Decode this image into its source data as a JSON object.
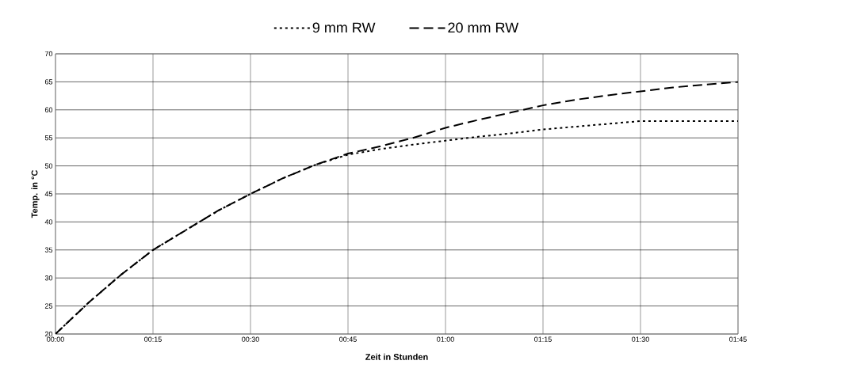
{
  "chart_data": {
    "type": "line",
    "xlabel": "Zeit in Stunden",
    "ylabel": "Temp. in °C",
    "x": [
      0,
      0.0833,
      0.1667,
      0.25,
      0.3333,
      0.4167,
      0.5,
      0.5833,
      0.6667,
      0.75,
      0.8333,
      0.9167,
      1,
      1.0833,
      1.1667,
      1.25,
      1.3333,
      1.4167,
      1.5,
      1.5833,
      1.6667,
      1.75
    ],
    "series": [
      {
        "name": "9 mm RW",
        "color": "#000000",
        "line_style": "dotted",
        "values": [
          20,
          25.5,
          30.5,
          35,
          38.5,
          42,
          45,
          47.8,
          50.2,
          52,
          53,
          53.8,
          54.5,
          55.2,
          55.8,
          56.5,
          57,
          57.5,
          58,
          58,
          58,
          58
        ]
      },
      {
        "name": "20 mm RW",
        "color": "#000000",
        "line_style": "dashed",
        "values": [
          20,
          25.5,
          30.5,
          35,
          38.5,
          42,
          45,
          47.8,
          50.2,
          52.2,
          53.5,
          55,
          56.8,
          58.2,
          59.5,
          60.8,
          61.8,
          62.6,
          63.3,
          64,
          64.5,
          65
        ]
      }
    ],
    "xlim": [
      0,
      1.75
    ],
    "ylim": [
      20,
      70
    ],
    "xticks": [
      {
        "value": 0,
        "label": "00:00"
      },
      {
        "value": 0.25,
        "label": "00:15"
      },
      {
        "value": 0.5,
        "label": "00:30"
      },
      {
        "value": 0.75,
        "label": "00:45"
      },
      {
        "value": 1,
        "label": "01:00"
      },
      {
        "value": 1.25,
        "label": "01:15"
      },
      {
        "value": 1.5,
        "label": "01:30"
      },
      {
        "value": 1.75,
        "label": "01:45"
      }
    ],
    "yticks": [
      20,
      25,
      30,
      35,
      40,
      45,
      50,
      55,
      60,
      65,
      70
    ],
    "grid": true,
    "legend": "top"
  }
}
